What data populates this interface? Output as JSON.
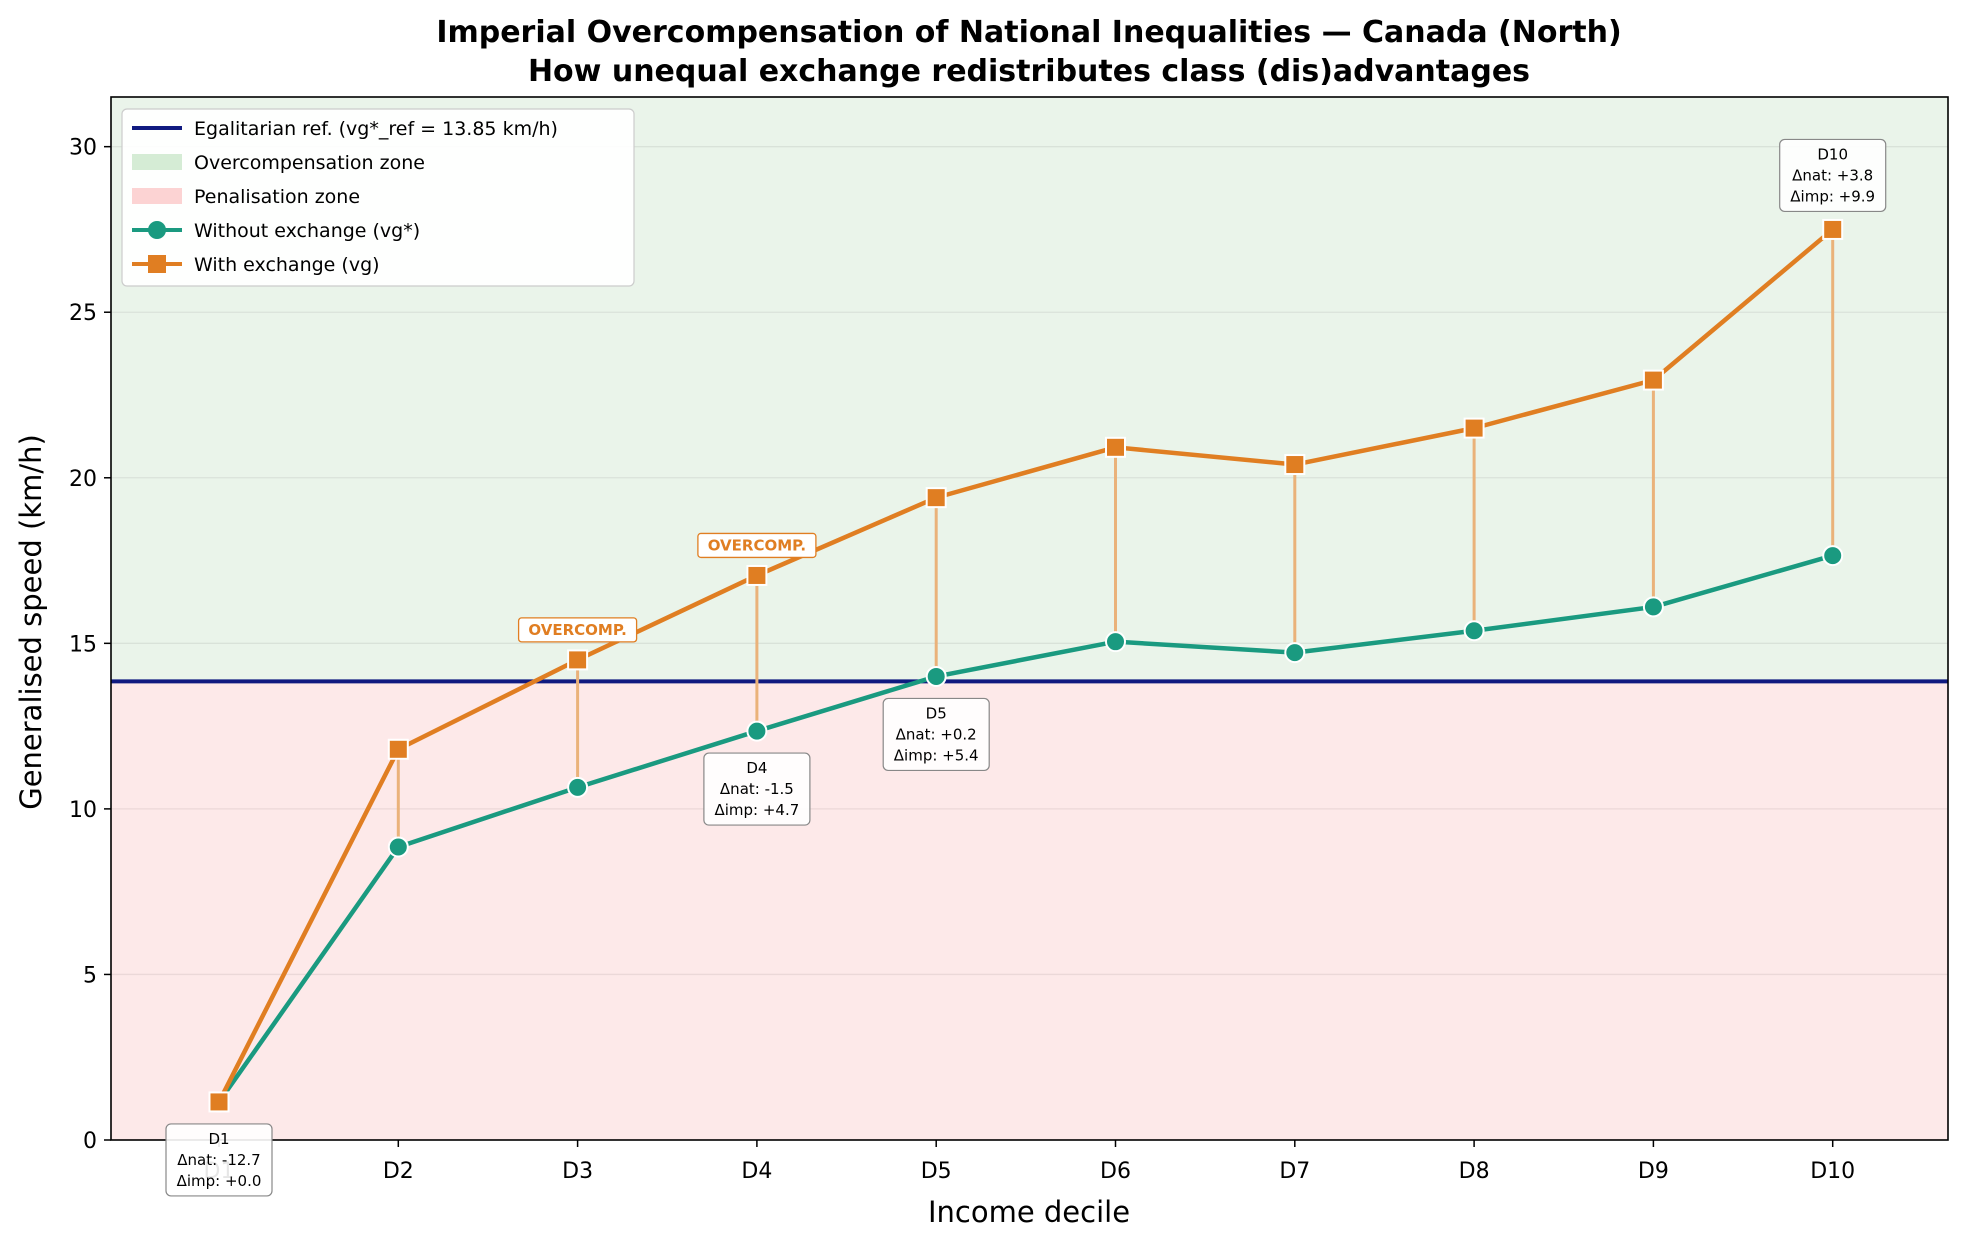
{
  "chart_data": {
    "type": "line",
    "title": "Imperial Overcompensation of National Inequalities — Canada (North)",
    "subtitle": "How unequal exchange redistributes class (dis)advantages",
    "xlabel": "Income decile",
    "ylabel": "Generalised speed (km/h)",
    "categories": [
      "D1",
      "D2",
      "D3",
      "D4",
      "D5",
      "D6",
      "D7",
      "D8",
      "D9",
      "D10"
    ],
    "ylim": [
      0,
      31.5
    ],
    "yticks": [
      0,
      5,
      10,
      15,
      20,
      25,
      30
    ],
    "grid": "horizontal",
    "legend_position": "top-left",
    "reference": {
      "label": "Egalitarian ref. (vg*_ref = 13.85 km/h)",
      "value": 13.85,
      "color": "#101a80"
    },
    "zones": [
      {
        "label": "Overcompensation zone",
        "color": "#d5ecd5",
        "fill_color": "#eaf4ea",
        "from": 13.85,
        "to": 31.5
      },
      {
        "label": "Penalisation zone",
        "color": "#fcd3d3",
        "fill_color": "#fde9e9",
        "from": 0,
        "to": 13.85
      }
    ],
    "series": [
      {
        "name": "Without exchange (vg*)",
        "color": "#1a9a80",
        "marker": "circle",
        "values": [
          1.15,
          8.85,
          10.65,
          12.35,
          14.0,
          15.05,
          14.72,
          15.38,
          16.1,
          17.65
        ]
      },
      {
        "name": "With exchange (vg)",
        "color": "#e07e22",
        "marker": "square",
        "values": [
          1.15,
          11.8,
          14.5,
          17.05,
          19.4,
          20.92,
          20.4,
          21.5,
          22.95,
          27.5
        ]
      }
    ],
    "connector_color": "#eab27a",
    "annotations": [
      {
        "decile": "D1",
        "lines": [
          "D1",
          "Δnat: -12.7",
          "Δimp: +0.0"
        ],
        "position": "below"
      },
      {
        "decile": "D4",
        "lines": [
          "D4",
          "Δnat: -1.5",
          "Δimp: +4.7"
        ],
        "position": "below"
      },
      {
        "decile": "D5",
        "lines": [
          "D5",
          "Δnat: +0.2",
          "Δimp: +5.4"
        ],
        "position": "below"
      },
      {
        "decile": "D10",
        "lines": [
          "D10",
          "Δnat: +3.8",
          "Δimp: +9.9"
        ],
        "position": "above"
      }
    ],
    "tags": [
      {
        "decile": "D3",
        "text": "OVERCOMP."
      },
      {
        "decile": "D4",
        "text": "OVERCOMP."
      }
    ]
  }
}
